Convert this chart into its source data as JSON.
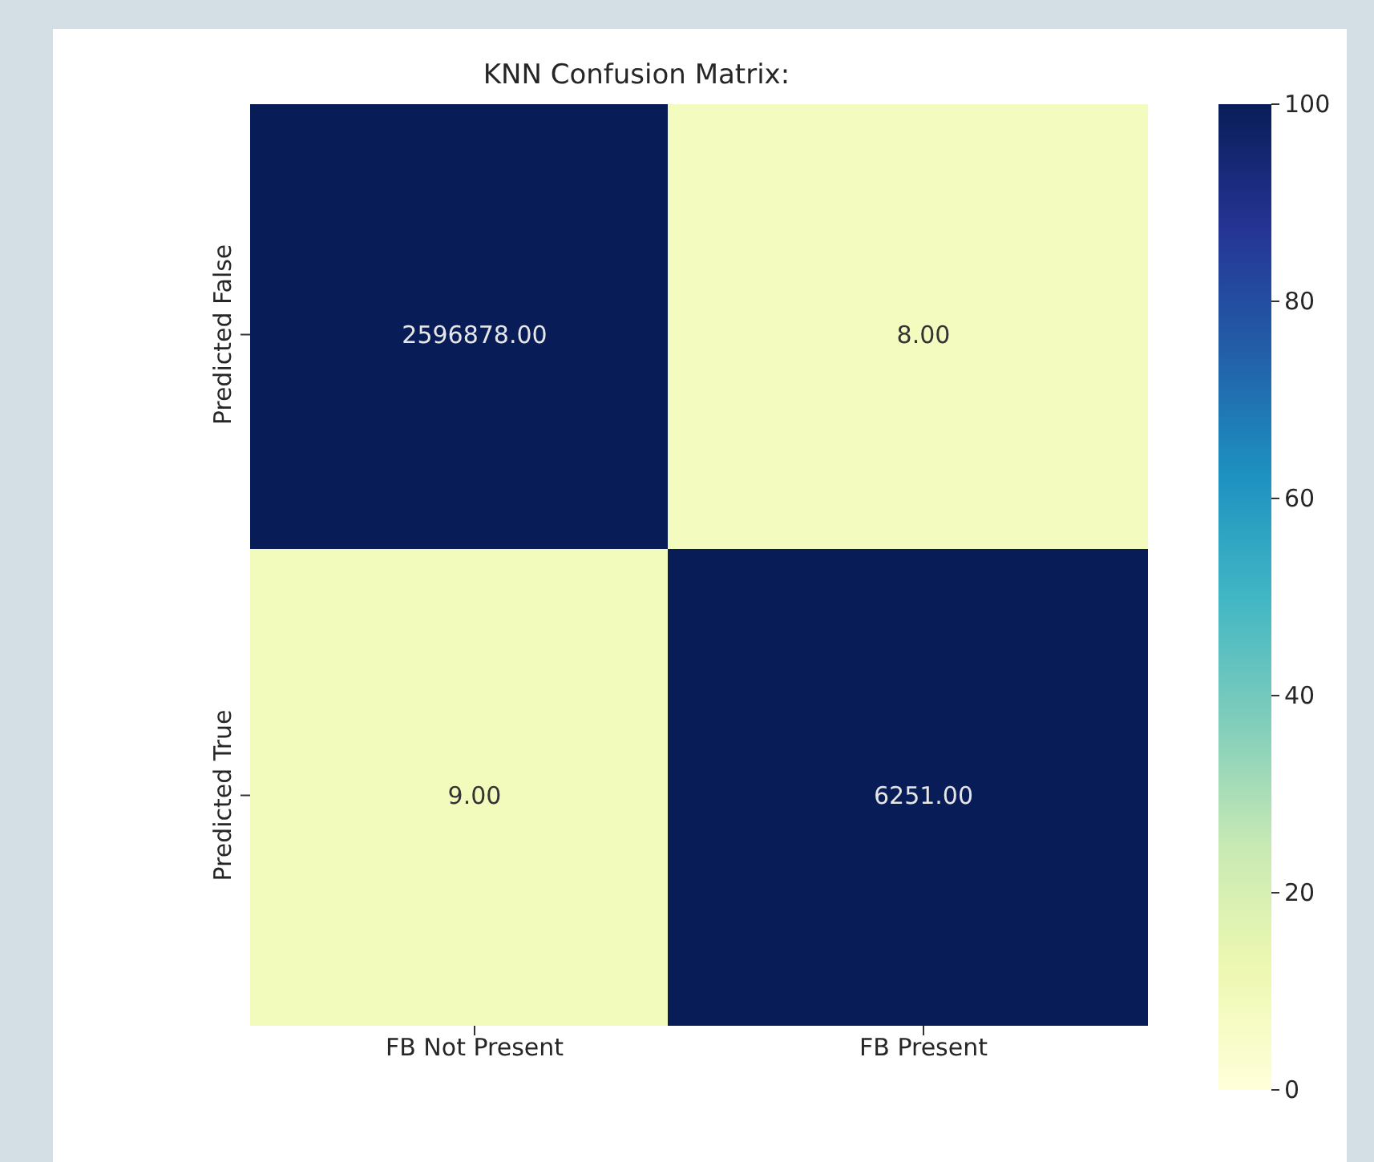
{
  "chart_data": {
    "type": "heatmap",
    "title": "KNN Confusion Matrix:",
    "categories": [
      "FB Not Present",
      "FB Present"
    ],
    "y_categories": [
      "Predicted False",
      "Predicted True"
    ],
    "cells": [
      [
        2596878,
        8
      ],
      [
        9,
        6251
      ]
    ],
    "cell_labels": [
      [
        "2596878.00",
        "8.00"
      ],
      [
        "9.00",
        "6251.00"
      ]
    ],
    "clim": [
      0,
      100
    ],
    "cticks": [
      0,
      20,
      40,
      60,
      80,
      100
    ]
  }
}
